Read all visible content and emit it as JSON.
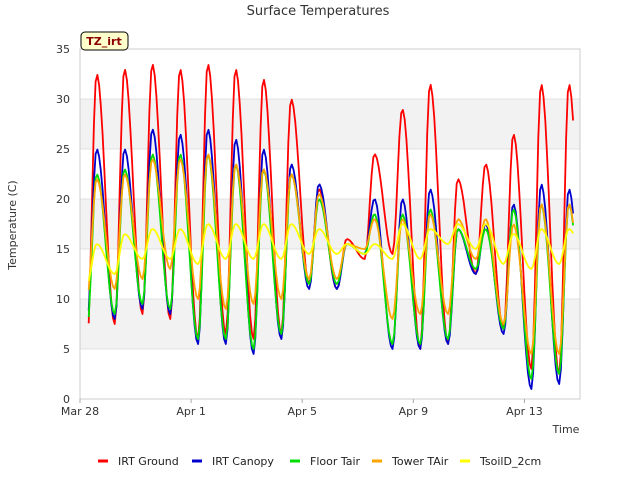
{
  "chart_data": {
    "type": "line",
    "title": "Surface Temperatures",
    "xlabel": "Time",
    "ylabel": "Temperature (C)",
    "badge": "TZ_irt",
    "ylim": [
      0,
      35
    ],
    "yticks": [
      0,
      5,
      10,
      15,
      20,
      25,
      30,
      35
    ],
    "xlim": [
      "2024-03-28",
      "2024-04-15"
    ],
    "xticks": [
      {
        "date": "2024-03-28",
        "label": "Mar 28"
      },
      {
        "date": "2024-04-01",
        "label": "Apr 1"
      },
      {
        "date": "2024-04-05",
        "label": "Apr 5"
      },
      {
        "date": "2024-04-09",
        "label": "Apr 9"
      },
      {
        "date": "2024-04-13",
        "label": "Apr 13"
      }
    ],
    "band_shading": "alternate horizontal bands, light gray",
    "legend_position": "bottom",
    "x_dates": [
      "2024-03-28",
      "2024-03-29",
      "2024-03-30",
      "2024-03-31",
      "2024-04-01",
      "2024-04-02",
      "2024-04-03",
      "2024-04-04",
      "2024-04-05",
      "2024-04-06",
      "2024-04-07",
      "2024-04-08",
      "2024-04-09",
      "2024-04-10",
      "2024-04-11",
      "2024-04-12",
      "2024-04-13",
      "2024-04-14"
    ],
    "series": [
      {
        "name": "IRT Ground",
        "color": "#ff0000",
        "daily_min": [
          5.5,
          7.5,
          8.5,
          8.0,
          6.0,
          6.5,
          6.0,
          6.5,
          11.5,
          11.0,
          14.0,
          14.5,
          5.0,
          5.5,
          12.5,
          7.0,
          3.0,
          2.5
        ],
        "daily_max": [
          32.5,
          33.0,
          33.5,
          33.0,
          33.5,
          33.0,
          32.0,
          30.0,
          21.0,
          16.0,
          24.5,
          29.0,
          31.5,
          22.0,
          23.5,
          26.5,
          31.5,
          31.5
        ]
      },
      {
        "name": "IRT Canopy",
        "color": "#0000cc",
        "daily_min": [
          7.5,
          8.0,
          9.0,
          8.5,
          5.5,
          5.5,
          4.5,
          6.0,
          11.0,
          11.0,
          14.5,
          5.0,
          5.0,
          5.5,
          12.5,
          6.5,
          1.0,
          1.5
        ],
        "daily_max": [
          25.0,
          25.0,
          27.0,
          26.5,
          27.0,
          26.0,
          25.0,
          23.5,
          21.5,
          15.5,
          20.0,
          20.0,
          21.0,
          17.0,
          17.5,
          19.5,
          21.5,
          21.0
        ]
      },
      {
        "name": "Floor Tair",
        "color": "#00dd00",
        "daily_min": [
          7.0,
          8.5,
          9.5,
          9.0,
          6.0,
          6.0,
          5.0,
          6.5,
          11.5,
          11.5,
          14.5,
          5.5,
          5.5,
          6.0,
          13.0,
          7.0,
          2.0,
          2.5
        ],
        "daily_max": [
          22.5,
          23.0,
          24.5,
          24.5,
          24.5,
          23.5,
          23.0,
          22.5,
          20.0,
          15.5,
          18.5,
          18.5,
          19.0,
          17.0,
          17.0,
          19.0,
          19.5,
          19.5
        ]
      },
      {
        "name": "Tower TAir",
        "color": "#ffa500",
        "daily_min": [
          10.0,
          11.0,
          12.0,
          13.0,
          10.0,
          9.0,
          9.5,
          10.0,
          12.0,
          12.0,
          15.0,
          8.0,
          8.5,
          8.5,
          14.0,
          7.5,
          4.5,
          4.5
        ],
        "daily_max": [
          22.0,
          22.5,
          24.0,
          24.0,
          24.5,
          23.5,
          23.0,
          22.5,
          20.5,
          15.5,
          18.0,
          18.0,
          18.5,
          18.0,
          18.0,
          17.5,
          19.5,
          19.5
        ]
      },
      {
        "name": "TsoilD_2cm",
        "color": "#ffff00",
        "daily_min": [
          11.5,
          12.5,
          14.0,
          14.0,
          13.5,
          14.0,
          14.0,
          14.0,
          14.5,
          14.5,
          14.5,
          14.0,
          14.0,
          15.5,
          15.0,
          13.5,
          13.0,
          13.5
        ],
        "daily_max": [
          15.5,
          16.5,
          17.0,
          17.0,
          17.5,
          17.5,
          17.5,
          17.5,
          17.0,
          15.5,
          15.5,
          17.5,
          17.0,
          17.5,
          17.5,
          16.5,
          17.0,
          17.0
        ]
      }
    ]
  }
}
